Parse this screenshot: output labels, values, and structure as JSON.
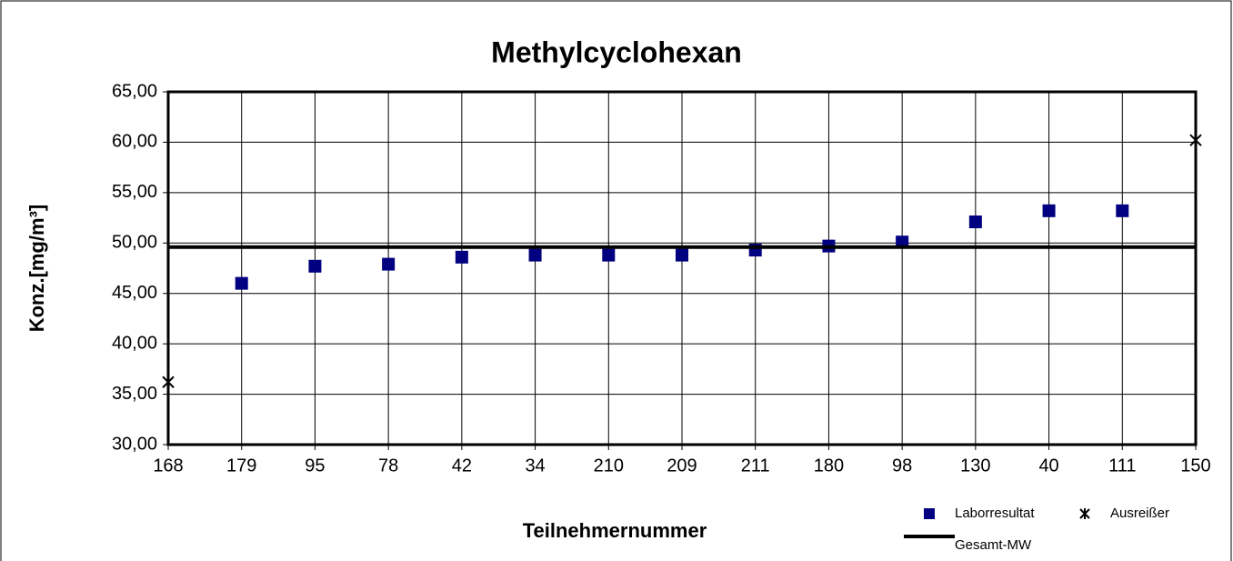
{
  "chart_data": {
    "type": "scatter",
    "title": "Methylcyclohexan",
    "x_label": "Teilnehmernummer",
    "y_label": "Konz.[mg/m³]",
    "categories": [
      "168",
      "179",
      "95",
      "78",
      "42",
      "34",
      "210",
      "209",
      "211",
      "180",
      "98",
      "130",
      "40",
      "111",
      "150"
    ],
    "series": [
      {
        "name": "Laborresultat",
        "color": "#000080",
        "marker": "square",
        "values": [
          null,
          46.0,
          47.7,
          47.9,
          48.6,
          48.8,
          48.8,
          48.8,
          49.3,
          49.7,
          50.1,
          52.1,
          53.2,
          53.2,
          null
        ]
      },
      {
        "name": "Ausreißer",
        "color": "#000000",
        "marker": "x",
        "values": [
          36.2,
          null,
          null,
          null,
          null,
          null,
          null,
          null,
          null,
          null,
          null,
          null,
          null,
          null,
          60.2
        ]
      },
      {
        "name": "Gesamt-MW",
        "color": "#000000",
        "marker": "line",
        "values": [
          49.6,
          49.6,
          49.6,
          49.6,
          49.6,
          49.6,
          49.6,
          49.6,
          49.6,
          49.6,
          49.6,
          49.6,
          49.6,
          49.6,
          49.6
        ]
      }
    ],
    "ylim": [
      30,
      65
    ],
    "yticks": [
      {
        "value": 30,
        "label": "30,00"
      },
      {
        "value": 35,
        "label": "35,00"
      },
      {
        "value": 40,
        "label": "40,00"
      },
      {
        "value": 45,
        "label": "45,00"
      },
      {
        "value": 50,
        "label": "50,00"
      },
      {
        "value": 55,
        "label": "55,00"
      },
      {
        "value": 60,
        "label": "60,00"
      },
      {
        "value": 65,
        "label": "65,00"
      }
    ],
    "grid": true,
    "legend": "bottom-right"
  }
}
